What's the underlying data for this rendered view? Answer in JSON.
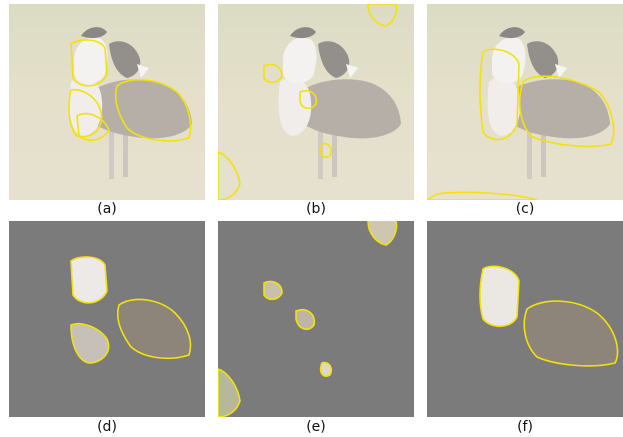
{
  "figure": {
    "captions": [
      "(a)",
      "(b)",
      "(c)",
      "(d)",
      "(e)",
      "(f)"
    ],
    "colors": {
      "grass_light": "#d8d2b0",
      "grass_dark": "#b8b596",
      "bird_body": "#8a7f73",
      "bird_white": "#eeebe8",
      "mask_gray": "#7b7b7b",
      "outline_yellow": "#f2e20a"
    }
  }
}
